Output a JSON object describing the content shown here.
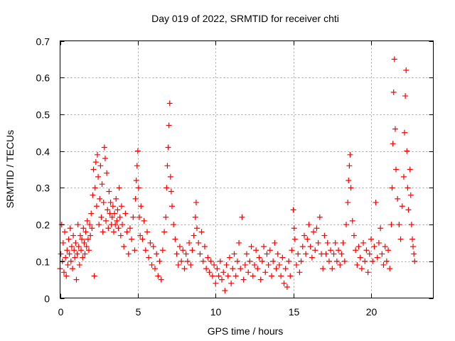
{
  "chart_data": {
    "type": "scatter",
    "title": "Day 019 of 2022, SRMTID for receiver chti",
    "xlabel": "GPS time / hours",
    "ylabel": "SRMTID / TECUs",
    "xlim": [
      0,
      24
    ],
    "ylim": [
      0,
      0.7
    ],
    "xticks": [
      "0",
      "5",
      "10",
      "15",
      "20"
    ],
    "xtick_values": [
      0,
      5,
      10,
      15,
      20
    ],
    "yticks": [
      "0",
      "0.1",
      "0.2",
      "0.3",
      "0.4",
      "0.5",
      "0.6",
      "0.7"
    ],
    "ytick_values": [
      0,
      0.1,
      0.2,
      0.3,
      0.4,
      0.5,
      0.6,
      0.7
    ],
    "grid": true,
    "marker": "plus",
    "color": "#ff0000",
    "series": [
      {
        "name": "SRMTID",
        "points": [
          [
            0.0,
            0.08
          ],
          [
            0.05,
            0.12
          ],
          [
            0.1,
            0.2
          ],
          [
            0.15,
            0.1
          ],
          [
            0.2,
            0.15
          ],
          [
            0.25,
            0.07
          ],
          [
            0.3,
            0.18
          ],
          [
            0.35,
            0.11
          ],
          [
            0.4,
            0.06
          ],
          [
            0.45,
            0.13
          ],
          [
            0.5,
            0.09
          ],
          [
            0.55,
            0.16
          ],
          [
            0.6,
            0.12
          ],
          [
            0.65,
            0.19
          ],
          [
            0.7,
            0.1
          ],
          [
            0.75,
            0.14
          ],
          [
            0.8,
            0.08
          ],
          [
            0.85,
            0.17
          ],
          [
            0.9,
            0.13
          ],
          [
            0.95,
            0.11
          ],
          [
            1.0,
            0.15
          ],
          [
            1.05,
            0.05
          ],
          [
            1.1,
            0.12
          ],
          [
            1.15,
            0.2
          ],
          [
            1.2,
            0.14
          ],
          [
            1.25,
            0.09
          ],
          [
            1.3,
            0.17
          ],
          [
            1.35,
            0.13
          ],
          [
            1.4,
            0.16
          ],
          [
            1.45,
            0.11
          ],
          [
            1.5,
            0.19
          ],
          [
            1.55,
            0.15
          ],
          [
            1.6,
            0.12
          ],
          [
            1.65,
            0.18
          ],
          [
            1.7,
            0.14
          ],
          [
            1.75,
            0.21
          ],
          [
            1.8,
            0.16
          ],
          [
            1.85,
            0.13
          ],
          [
            1.9,
            0.2
          ],
          [
            1.95,
            0.17
          ],
          [
            2.0,
            0.23
          ],
          [
            2.05,
            0.19
          ],
          [
            2.1,
            0.28
          ],
          [
            2.15,
            0.35
          ],
          [
            2.2,
            0.06
          ],
          [
            2.25,
            0.3
          ],
          [
            2.3,
            0.37
          ],
          [
            2.35,
            0.25
          ],
          [
            2.4,
            0.39
          ],
          [
            2.45,
            0.33
          ],
          [
            2.5,
            0.2
          ],
          [
            2.55,
            0.27
          ],
          [
            2.6,
            0.36
          ],
          [
            2.65,
            0.22
          ],
          [
            2.7,
            0.31
          ],
          [
            2.75,
            0.18
          ],
          [
            2.8,
            0.26
          ],
          [
            2.85,
            0.41
          ],
          [
            2.9,
            0.38
          ],
          [
            2.95,
            0.21
          ],
          [
            3.0,
            0.34
          ],
          [
            3.05,
            0.24
          ],
          [
            3.1,
            0.19
          ],
          [
            3.15,
            0.29
          ],
          [
            3.2,
            0.23
          ],
          [
            3.25,
            0.26
          ],
          [
            3.3,
            0.2
          ],
          [
            3.35,
            0.22
          ],
          [
            3.4,
            0.25
          ],
          [
            3.45,
            0.18
          ],
          [
            3.5,
            0.23
          ],
          [
            3.55,
            0.2
          ],
          [
            3.6,
            0.27
          ],
          [
            3.65,
            0.21
          ],
          [
            3.7,
            0.24
          ],
          [
            3.75,
            0.19
          ],
          [
            3.8,
            0.3
          ],
          [
            3.85,
            0.22
          ],
          [
            3.9,
            0.17
          ],
          [
            3.95,
            0.25
          ],
          [
            4.0,
            0.2
          ],
          [
            4.1,
            0.14
          ],
          [
            4.2,
            0.23
          ],
          [
            4.3,
            0.18
          ],
          [
            4.4,
            0.12
          ],
          [
            4.5,
            0.19
          ],
          [
            4.6,
            0.16
          ],
          [
            4.7,
            0.22
          ],
          [
            4.8,
            0.13
          ],
          [
            4.85,
            0.27
          ],
          [
            4.9,
            0.32
          ],
          [
            4.95,
            0.36
          ],
          [
            5.0,
            0.4
          ],
          [
            5.05,
            0.3
          ],
          [
            5.1,
            0.22
          ],
          [
            5.15,
            0.17
          ],
          [
            5.2,
            0.25
          ],
          [
            5.3,
            0.16
          ],
          [
            5.4,
            0.21
          ],
          [
            5.5,
            0.13
          ],
          [
            5.6,
            0.18
          ],
          [
            5.7,
            0.11
          ],
          [
            5.8,
            0.15
          ],
          [
            5.9,
            0.09
          ],
          [
            6.0,
            0.14
          ],
          [
            6.1,
            0.08
          ],
          [
            6.2,
            0.12
          ],
          [
            6.3,
            0.06
          ],
          [
            6.4,
            0.1
          ],
          [
            6.5,
            0.05
          ],
          [
            6.6,
            0.13
          ],
          [
            6.7,
            0.18
          ],
          [
            6.8,
            0.22
          ],
          [
            6.85,
            0.3
          ],
          [
            6.9,
            0.36
          ],
          [
            6.95,
            0.41
          ],
          [
            7.0,
            0.47
          ],
          [
            7.05,
            0.53
          ],
          [
            7.1,
            0.33
          ],
          [
            7.15,
            0.29
          ],
          [
            7.2,
            0.25
          ],
          [
            7.3,
            0.2
          ],
          [
            7.4,
            0.16
          ],
          [
            7.5,
            0.12
          ],
          [
            7.6,
            0.09
          ],
          [
            7.7,
            0.14
          ],
          [
            7.8,
            0.1
          ],
          [
            7.9,
            0.13
          ],
          [
            8.0,
            0.08
          ],
          [
            8.1,
            0.12
          ],
          [
            8.2,
            0.1
          ],
          [
            8.3,
            0.15
          ],
          [
            8.4,
            0.09
          ],
          [
            8.5,
            0.13
          ],
          [
            8.6,
            0.17
          ],
          [
            8.7,
            0.22
          ],
          [
            8.75,
            0.26
          ],
          [
            8.8,
            0.19
          ],
          [
            8.9,
            0.15
          ],
          [
            9.0,
            0.12
          ],
          [
            9.1,
            0.18
          ],
          [
            9.2,
            0.1
          ],
          [
            9.3,
            0.14
          ],
          [
            9.4,
            0.08
          ],
          [
            9.5,
            0.11
          ],
          [
            9.6,
            0.07
          ],
          [
            9.7,
            0.1
          ],
          [
            9.8,
            0.06
          ],
          [
            9.9,
            0.09
          ],
          [
            10.0,
            0.04
          ],
          [
            10.1,
            0.08
          ],
          [
            10.2,
            0.06
          ],
          [
            10.3,
            0.1
          ],
          [
            10.4,
            0.05
          ],
          [
            10.5,
            0.07
          ],
          [
            10.6,
            0.02
          ],
          [
            10.7,
            0.09
          ],
          [
            10.8,
            0.06
          ],
          [
            10.9,
            0.11
          ],
          [
            11.0,
            0.04
          ],
          [
            11.1,
            0.08
          ],
          [
            11.2,
            0.12
          ],
          [
            11.3,
            0.06
          ],
          [
            11.4,
            0.1
          ],
          [
            11.5,
            0.15
          ],
          [
            11.6,
            0.08
          ],
          [
            11.7,
            0.22
          ],
          [
            11.8,
            0.05
          ],
          [
            11.9,
            0.09
          ],
          [
            12.0,
            0.12
          ],
          [
            12.1,
            0.07
          ],
          [
            12.2,
            0.1
          ],
          [
            12.3,
            0.14
          ],
          [
            12.4,
            0.06
          ],
          [
            12.5,
            0.09
          ],
          [
            12.6,
            0.13
          ],
          [
            12.7,
            0.08
          ],
          [
            12.8,
            0.11
          ],
          [
            12.9,
            0.05
          ],
          [
            13.0,
            0.1
          ],
          [
            13.1,
            0.14
          ],
          [
            13.2,
            0.07
          ],
          [
            13.3,
            0.12
          ],
          [
            13.4,
            0.09
          ],
          [
            13.5,
            0.13
          ],
          [
            13.6,
            0.06
          ],
          [
            13.7,
            0.1
          ],
          [
            13.8,
            0.15
          ],
          [
            13.9,
            0.08
          ],
          [
            14.0,
            0.12
          ],
          [
            14.1,
            0.09
          ],
          [
            14.2,
            0.06
          ],
          [
            14.3,
            0.11
          ],
          [
            14.4,
            0.04
          ],
          [
            14.5,
            0.08
          ],
          [
            14.6,
            0.03
          ],
          [
            14.7,
            0.1
          ],
          [
            14.8,
            0.06
          ],
          [
            14.9,
            0.13
          ],
          [
            15.0,
            0.24
          ],
          [
            15.05,
            0.19
          ],
          [
            15.1,
            0.16
          ],
          [
            15.2,
            0.09
          ],
          [
            15.3,
            0.12
          ],
          [
            15.4,
            0.07
          ],
          [
            15.5,
            0.1
          ],
          [
            15.6,
            0.14
          ],
          [
            15.7,
            0.17
          ],
          [
            15.8,
            0.12
          ],
          [
            15.9,
            0.16
          ],
          [
            16.0,
            0.2
          ],
          [
            16.1,
            0.14
          ],
          [
            16.2,
            0.11
          ],
          [
            16.3,
            0.18
          ],
          [
            16.4,
            0.13
          ],
          [
            16.5,
            0.19
          ],
          [
            16.6,
            0.15
          ],
          [
            16.7,
            0.22
          ],
          [
            16.8,
            0.12
          ],
          [
            16.9,
            0.08
          ],
          [
            17.0,
            0.17
          ],
          [
            17.1,
            0.12
          ],
          [
            17.2,
            0.15
          ],
          [
            17.3,
            0.1
          ],
          [
            17.4,
            0.13
          ],
          [
            17.5,
            0.08
          ],
          [
            17.6,
            0.12
          ],
          [
            17.7,
            0.15
          ],
          [
            17.8,
            0.1
          ],
          [
            17.9,
            0.13
          ],
          [
            18.0,
            0.09
          ],
          [
            18.1,
            0.12
          ],
          [
            18.2,
            0.15
          ],
          [
            18.3,
            0.1
          ],
          [
            18.4,
            0.2
          ],
          [
            18.5,
            0.26
          ],
          [
            18.55,
            0.32
          ],
          [
            18.6,
            0.36
          ],
          [
            18.65,
            0.39
          ],
          [
            18.7,
            0.3
          ],
          [
            18.8,
            0.21
          ],
          [
            18.9,
            0.17
          ],
          [
            19.0,
            0.13
          ],
          [
            19.1,
            0.09
          ],
          [
            19.2,
            0.14
          ],
          [
            19.3,
            0.11
          ],
          [
            19.4,
            0.08
          ],
          [
            19.5,
            0.15
          ],
          [
            19.6,
            0.1
          ],
          [
            19.7,
            0.13
          ],
          [
            19.8,
            0.07
          ],
          [
            19.9,
            0.12
          ],
          [
            20.0,
            0.16
          ],
          [
            20.1,
            0.1
          ],
          [
            20.2,
            0.14
          ],
          [
            20.3,
            0.26
          ],
          [
            20.4,
            0.11
          ],
          [
            20.5,
            0.15
          ],
          [
            20.6,
            0.19
          ],
          [
            20.7,
            0.12
          ],
          [
            20.8,
            0.09
          ],
          [
            20.9,
            0.14
          ],
          [
            21.0,
            0.1
          ],
          [
            21.1,
            0.13
          ],
          [
            21.2,
            0.08
          ],
          [
            21.3,
            0.2
          ],
          [
            21.35,
            0.3
          ],
          [
            21.4,
            0.42
          ],
          [
            21.45,
            0.56
          ],
          [
            21.5,
            0.65
          ],
          [
            21.55,
            0.46
          ],
          [
            21.6,
            0.35
          ],
          [
            21.7,
            0.27
          ],
          [
            21.8,
            0.2
          ],
          [
            21.9,
            0.16
          ],
          [
            22.0,
            0.25
          ],
          [
            22.1,
            0.33
          ],
          [
            22.15,
            0.45
          ],
          [
            22.2,
            0.55
          ],
          [
            22.25,
            0.62
          ],
          [
            22.3,
            0.4
          ],
          [
            22.35,
            0.3
          ],
          [
            22.4,
            0.24
          ],
          [
            22.5,
            0.35
          ],
          [
            22.55,
            0.28
          ],
          [
            22.6,
            0.2
          ],
          [
            22.65,
            0.16
          ],
          [
            22.7,
            0.14
          ],
          [
            22.75,
            0.12
          ],
          [
            22.8,
            0.1
          ]
        ]
      }
    ]
  }
}
